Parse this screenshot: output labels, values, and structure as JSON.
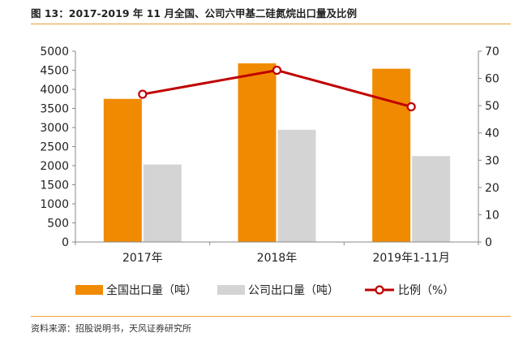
{
  "figure": {
    "title": "图 13：2017-2019 年 11 月全国、公司六甲基二硅氮烷出口量及比例",
    "source": "资料来源：招股说明书，天风证券研究所"
  },
  "chart_data": {
    "type": "bar",
    "categories": [
      "2017年",
      "2018年",
      "2019年1-11月"
    ],
    "series": [
      {
        "name": "全国出口量（吨）",
        "type": "bar",
        "axis": "left",
        "color": "#f08a00",
        "values": [
          3750,
          4680,
          4540
        ]
      },
      {
        "name": "公司出口量（吨）",
        "type": "bar",
        "axis": "left",
        "color": "#d4d4d4",
        "values": [
          2030,
          2940,
          2250
        ]
      },
      {
        "name": "比例（%）",
        "type": "line",
        "axis": "right",
        "color": "#c00000",
        "values": [
          54.2,
          63.0,
          49.6
        ]
      }
    ],
    "ylim": [
      0,
      5000
    ],
    "y_ticks": [
      "0",
      "500",
      "1000",
      "1500",
      "2000",
      "2500",
      "3000",
      "3500",
      "4000",
      "4500",
      "5000"
    ],
    "y2lim": [
      0,
      70
    ],
    "y2_ticks": [
      "0",
      "10",
      "20",
      "30",
      "40",
      "50",
      "60",
      "70"
    ],
    "grid": false,
    "legend_position": "bottom"
  }
}
